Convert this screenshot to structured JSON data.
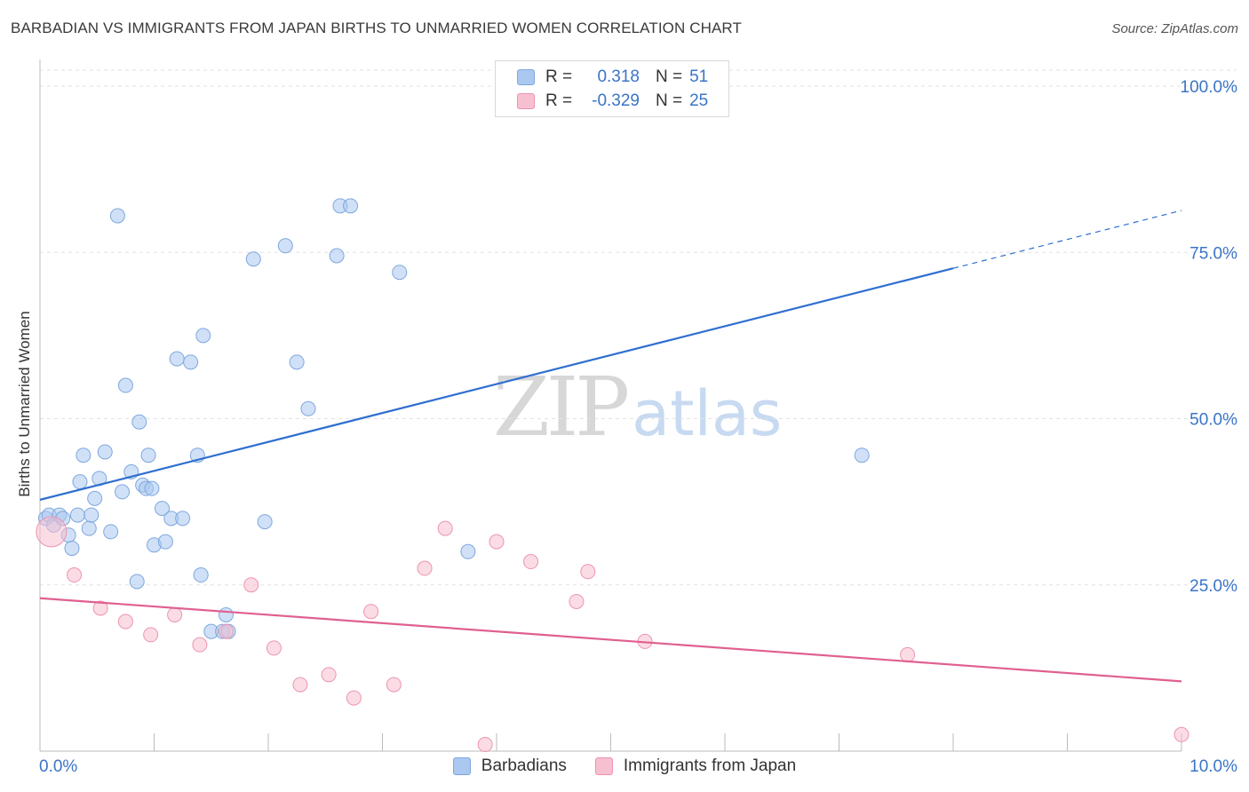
{
  "header": {
    "title": "BARBADIAN VS IMMIGRANTS FROM JAPAN BIRTHS TO UNMARRIED WOMEN CORRELATION CHART",
    "source": "Source: ZipAtlas.com"
  },
  "watermark": {
    "zip": "ZIP",
    "atlas": "atlas"
  },
  "legend": {
    "rows": [
      {
        "r_label": "R =",
        "r_value": "0.318",
        "n_label": "N =",
        "n_value": "51",
        "color": "#aac8f0",
        "border": "#7ea7de"
      },
      {
        "r_label": "R =",
        "r_value": "-0.329",
        "n_label": "N =",
        "n_value": "25",
        "color": "#f7c0d0",
        "border": "#ec94b0"
      }
    ]
  },
  "bottom_legend": [
    {
      "label": "Barbadians",
      "color": "#aac8f0",
      "border": "#7ea7de"
    },
    {
      "label": "Immigrants from Japan",
      "color": "#f7c0d0",
      "border": "#ec94b0"
    }
  ],
  "chart_data": {
    "type": "scatter",
    "title": "BARBADIAN VS IMMIGRANTS FROM JAPAN BIRTHS TO UNMARRIED WOMEN CORRELATION CHART",
    "xlabel": "",
    "ylabel": "Births to Unmarried Women",
    "xlim": [
      0,
      10
    ],
    "ylim": [
      0,
      100
    ],
    "x_tick_labels": [
      "0.0%",
      "10.0%"
    ],
    "y_tick_labels": [
      "100.0%",
      "75.0%",
      "50.0%",
      "25.0%"
    ],
    "y_ticks": [
      100,
      75,
      50,
      25
    ],
    "grid": true,
    "series": [
      {
        "name": "Barbadians",
        "color": "#7ea7de",
        "fill": "#aac8f0",
        "trend": {
          "x0": 0.0,
          "y0": 37.8,
          "x1": 8.0,
          "y1": 72.6,
          "dashed_to_x": 10.0
        },
        "points": [
          [
            0.05,
            35.0
          ],
          [
            0.08,
            35.5
          ],
          [
            0.12,
            34.0
          ],
          [
            0.17,
            35.5
          ],
          [
            0.2,
            35.0
          ],
          [
            0.25,
            32.5
          ],
          [
            0.28,
            30.5
          ],
          [
            0.33,
            35.5
          ],
          [
            0.35,
            40.5
          ],
          [
            0.38,
            44.5
          ],
          [
            0.43,
            33.5
          ],
          [
            0.45,
            35.5
          ],
          [
            0.48,
            38.0
          ],
          [
            0.52,
            41.0
          ],
          [
            0.57,
            45.0
          ],
          [
            0.62,
            33.0
          ],
          [
            0.68,
            80.5
          ],
          [
            0.72,
            39.0
          ],
          [
            0.75,
            55.0
          ],
          [
            0.8,
            42.0
          ],
          [
            0.85,
            25.5
          ],
          [
            0.87,
            49.5
          ],
          [
            0.9,
            40.0
          ],
          [
            0.93,
            39.5
          ],
          [
            0.95,
            44.5
          ],
          [
            0.98,
            39.5
          ],
          [
            1.0,
            31.0
          ],
          [
            1.07,
            36.5
          ],
          [
            1.1,
            31.5
          ],
          [
            1.15,
            35.0
          ],
          [
            1.2,
            59.0
          ],
          [
            1.25,
            35.0
          ],
          [
            1.32,
            58.5
          ],
          [
            1.38,
            44.5
          ],
          [
            1.41,
            26.5
          ],
          [
            1.43,
            62.5
          ],
          [
            1.5,
            18.0
          ],
          [
            1.6,
            18.0
          ],
          [
            1.63,
            20.5
          ],
          [
            1.87,
            74.0
          ],
          [
            1.97,
            34.5
          ],
          [
            2.15,
            76.0
          ],
          [
            2.25,
            58.5
          ],
          [
            2.35,
            51.5
          ],
          [
            2.6,
            74.5
          ],
          [
            2.63,
            82.0
          ],
          [
            2.72,
            82.0
          ],
          [
            3.15,
            72.0
          ],
          [
            3.75,
            30.0
          ],
          [
            7.2,
            44.5
          ],
          [
            1.65,
            18.0
          ]
        ]
      },
      {
        "name": "Immigrants from Japan",
        "color": "#ec94b0",
        "fill": "#f7c0d0",
        "trend": {
          "x0": 0.0,
          "y0": 23.0,
          "x1": 10.0,
          "y1": 10.5
        },
        "points": [
          [
            0.1,
            33.0
          ],
          [
            0.3,
            26.5
          ],
          [
            0.53,
            21.5
          ],
          [
            0.75,
            19.5
          ],
          [
            0.97,
            17.5
          ],
          [
            1.18,
            20.5
          ],
          [
            1.4,
            16.0
          ],
          [
            1.63,
            18.0
          ],
          [
            1.85,
            25.0
          ],
          [
            2.05,
            15.5
          ],
          [
            2.28,
            10.0
          ],
          [
            2.53,
            11.5
          ],
          [
            2.75,
            8.0
          ],
          [
            2.9,
            21.0
          ],
          [
            3.1,
            10.0
          ],
          [
            3.37,
            27.5
          ],
          [
            3.55,
            33.5
          ],
          [
            3.9,
            1.0
          ],
          [
            4.0,
            31.5
          ],
          [
            4.3,
            28.5
          ],
          [
            4.7,
            22.5
          ],
          [
            4.8,
            27.0
          ],
          [
            5.3,
            16.5
          ],
          [
            7.6,
            14.5
          ],
          [
            10.0,
            2.5
          ]
        ]
      }
    ]
  }
}
